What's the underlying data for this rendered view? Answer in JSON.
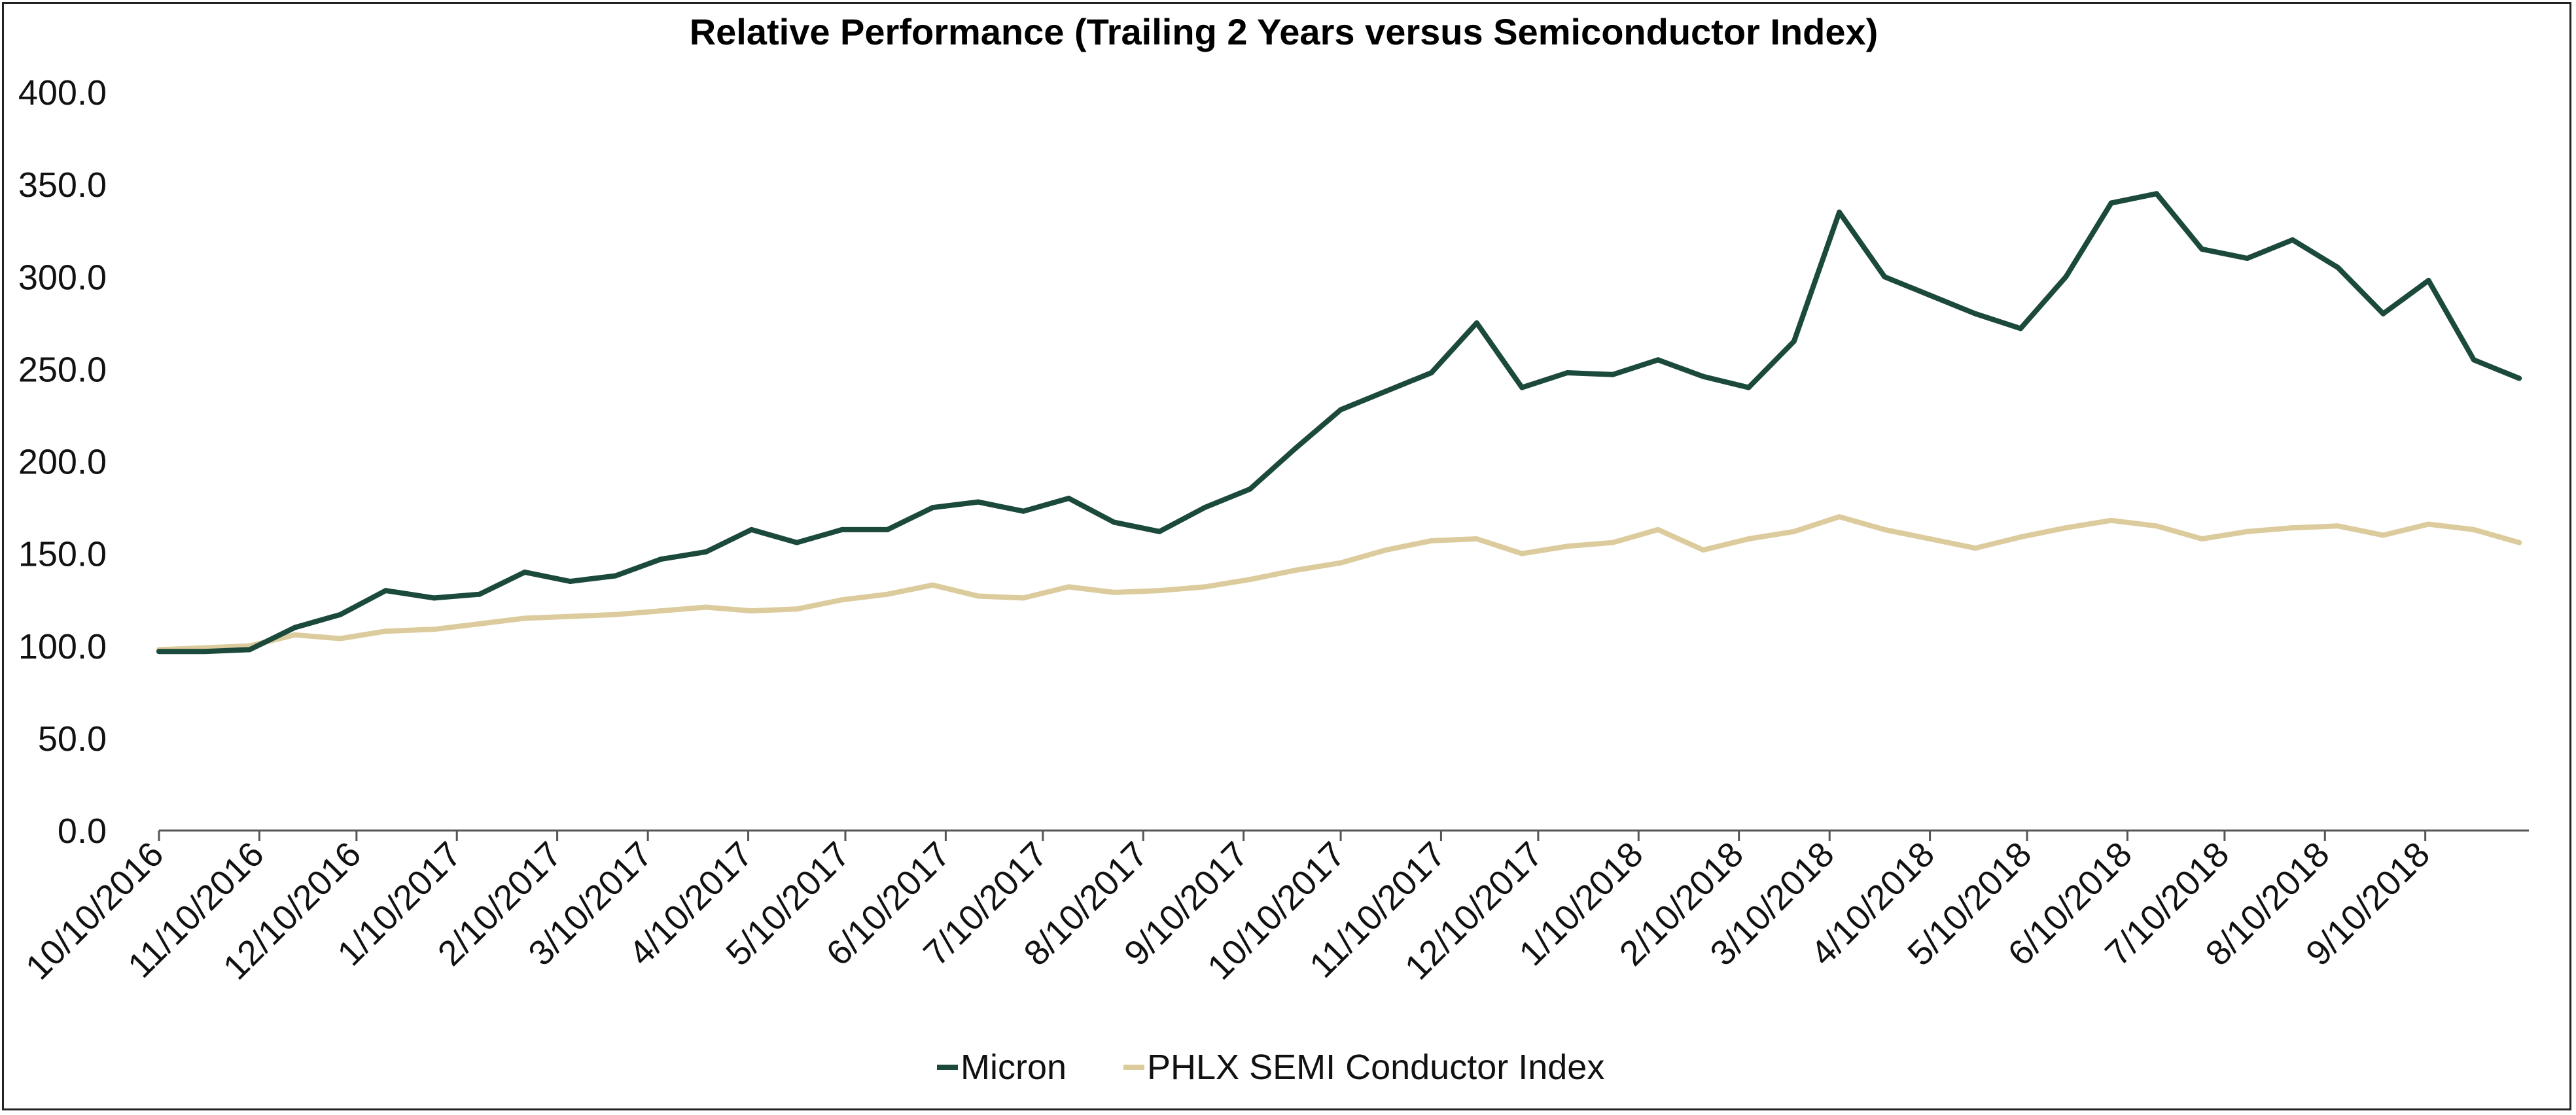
{
  "chart_data": {
    "type": "line",
    "title": "Relative Performance (Trailing 2 Years versus Semiconductor Index)",
    "xlabel": "",
    "ylabel": "",
    "ylim": [
      0,
      400
    ],
    "yticks": [
      "0.0",
      "50.0",
      "100.0",
      "150.0",
      "200.0",
      "250.0",
      "300.0",
      "350.0",
      "400.0"
    ],
    "ytick_values": [
      0,
      50,
      100,
      150,
      200,
      250,
      300,
      350,
      400
    ],
    "xticks": [
      "10/10/2016",
      "11/10/2016",
      "12/10/2016",
      "1/10/2017",
      "2/10/2017",
      "3/10/2017",
      "4/10/2017",
      "5/10/2017",
      "6/10/2017",
      "7/10/2017",
      "8/10/2017",
      "9/10/2017",
      "10/10/2017",
      "11/10/2017",
      "12/10/2017",
      "1/10/2018",
      "2/10/2018",
      "3/10/2018",
      "4/10/2018",
      "5/10/2018",
      "6/10/2018",
      "7/10/2018",
      "8/10/2018",
      "9/10/2018"
    ],
    "x_start": "2016-10-10",
    "x_end": "2018-10-12",
    "grid": false,
    "legend_position": "bottom",
    "x": [
      "2016-10-10",
      "2016-10-24",
      "2016-11-07",
      "2016-11-21",
      "2016-12-05",
      "2016-12-19",
      "2017-01-03",
      "2017-01-17",
      "2017-01-31",
      "2017-02-14",
      "2017-02-28",
      "2017-03-14",
      "2017-03-28",
      "2017-04-11",
      "2017-04-25",
      "2017-05-09",
      "2017-05-23",
      "2017-06-06",
      "2017-06-20",
      "2017-07-04",
      "2017-07-18",
      "2017-08-01",
      "2017-08-15",
      "2017-08-29",
      "2017-09-12",
      "2017-09-26",
      "2017-10-10",
      "2017-10-24",
      "2017-11-07",
      "2017-11-21",
      "2017-12-05",
      "2017-12-19",
      "2018-01-02",
      "2018-01-16",
      "2018-01-30",
      "2018-02-13",
      "2018-02-27",
      "2018-03-13",
      "2018-03-27",
      "2018-04-10",
      "2018-04-24",
      "2018-05-08",
      "2018-05-22",
      "2018-06-05",
      "2018-06-19",
      "2018-07-03",
      "2018-07-17",
      "2018-07-31",
      "2018-08-14",
      "2018-08-28",
      "2018-09-11",
      "2018-09-25",
      "2018-10-09"
    ],
    "series": [
      {
        "name": "Micron",
        "color": "#1b4a3c",
        "values": [
          97,
          97,
          98,
          110,
          117,
          130,
          126,
          128,
          140,
          135,
          138,
          147,
          151,
          163,
          156,
          163,
          163,
          175,
          178,
          173,
          180,
          167,
          162,
          175,
          185,
          207,
          228,
          238,
          248,
          275,
          240,
          248,
          247,
          255,
          246,
          240,
          265,
          335,
          300,
          290,
          280,
          272,
          300,
          340,
          345,
          315,
          310,
          320,
          305,
          280,
          298,
          255,
          245
        ]
      },
      {
        "name": "PHLX SEMI Conductor Index",
        "color": "#dccb9c",
        "values": [
          98,
          99,
          100,
          106,
          104,
          108,
          109,
          112,
          115,
          116,
          117,
          119,
          121,
          119,
          120,
          125,
          128,
          133,
          127,
          126,
          132,
          129,
          130,
          132,
          136,
          141,
          145,
          152,
          157,
          158,
          150,
          154,
          156,
          163,
          152,
          158,
          162,
          170,
          163,
          158,
          153,
          159,
          164,
          168,
          165,
          158,
          162,
          164,
          165,
          160,
          166,
          163,
          156
        ]
      }
    ]
  }
}
